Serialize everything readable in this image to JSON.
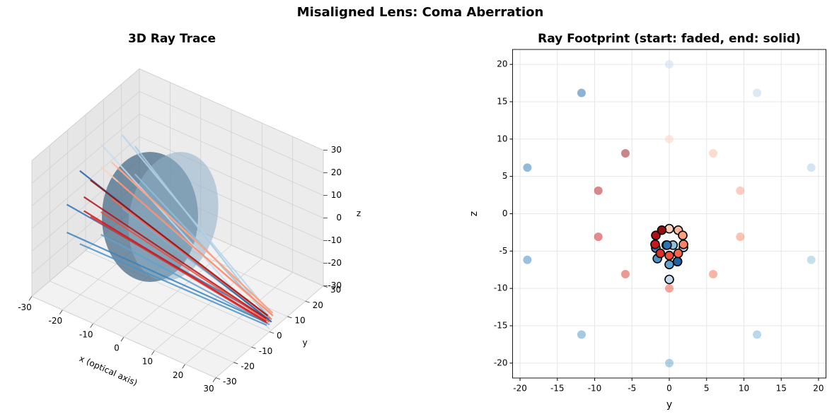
{
  "title": "Misaligned Lens: Coma Aberration",
  "chart_data": [
    {
      "type": "ray3d",
      "title": "3D Ray Trace",
      "xlabel": "x (optical axis)",
      "ylabel": "y",
      "zlabel": "z",
      "xlim": [
        -30,
        30
      ],
      "ylim": [
        -30,
        30
      ],
      "zlim": [
        -30,
        30
      ],
      "xticks": [
        -30,
        -20,
        -10,
        0,
        10,
        20,
        30
      ],
      "yticks": [
        -30,
        -20,
        -10,
        0,
        10,
        20,
        30
      ],
      "zticks": [
        -30,
        -20,
        -10,
        0,
        10,
        20,
        30
      ],
      "rays": [
        {
          "color": "#c6dbef",
          "x": [
            -25,
            30
          ],
          "y": [
            0,
            0
          ],
          "z": [
            20,
            -28.8
          ]
        },
        {
          "color": "#b7d4ea",
          "x": [
            -25,
            30
          ],
          "y": [
            11.76,
            1.9
          ],
          "z": [
            16.18,
            -24.5
          ]
        },
        {
          "color": "#a6cbe3",
          "x": [
            -25,
            30
          ],
          "y": [
            19.02,
            1.1
          ],
          "z": [
            6.18,
            -26.4
          ]
        },
        {
          "color": "#8fbfdc",
          "x": [
            -25,
            30
          ],
          "y": [
            19.02,
            0.5
          ],
          "z": [
            -6.18,
            -24.2
          ]
        },
        {
          "color": "#77b2d8",
          "x": [
            -25,
            30
          ],
          "y": [
            11.76,
            -0.4
          ],
          "z": [
            -16.18,
            -24.2
          ]
        },
        {
          "color": "#5fa2cf",
          "x": [
            -25,
            30
          ],
          "y": [
            0,
            0
          ],
          "z": [
            -20,
            -26.8
          ]
        },
        {
          "color": "#4a93c6",
          "x": [
            -25,
            30
          ],
          "y": [
            -11.76,
            -1.6
          ],
          "z": [
            -16.18,
            -26
          ]
        },
        {
          "color": "#3a84bd",
          "x": [
            -25,
            30
          ],
          "y": [
            -19.02,
            -1.8
          ],
          "z": [
            -6.18,
            -24.6
          ]
        },
        {
          "color": "#2c74b4",
          "x": [
            -25,
            30
          ],
          "y": [
            -19.02,
            -0.3
          ],
          "z": [
            6.18,
            -24.2
          ]
        },
        {
          "color": "#1f63a8",
          "x": [
            -25,
            30
          ],
          "y": [
            -11.76,
            1.1
          ],
          "z": [
            16.18,
            -26.4
          ]
        },
        {
          "color": "#fdd0bc",
          "x": [
            -25,
            30
          ],
          "y": [
            0,
            0
          ],
          "z": [
            10,
            -22
          ]
        },
        {
          "color": "#fcb89e",
          "x": [
            -25,
            30
          ],
          "y": [
            5.88,
            1.2
          ],
          "z": [
            8.09,
            -22.2
          ]
        },
        {
          "color": "#fc9e80",
          "x": [
            -25,
            30
          ],
          "y": [
            9.51,
            1.8
          ],
          "z": [
            3.09,
            -22.9
          ]
        },
        {
          "color": "#fb8464",
          "x": [
            -25,
            30
          ],
          "y": [
            9.51,
            1.9
          ],
          "z": [
            -3.09,
            -24.1
          ]
        },
        {
          "color": "#f6694b",
          "x": [
            -25,
            30
          ],
          "y": [
            5.88,
            1.2
          ],
          "z": [
            -8.09,
            -25.3
          ]
        },
        {
          "color": "#ef4e37",
          "x": [
            -25,
            30
          ],
          "y": [
            0,
            0
          ],
          "z": [
            -10,
            -25.6
          ]
        },
        {
          "color": "#dd3027",
          "x": [
            -25,
            30
          ],
          "y": [
            -5.88,
            -1.2
          ],
          "z": [
            -8.09,
            -25.3
          ]
        },
        {
          "color": "#c8171d",
          "x": [
            -25,
            30
          ],
          "y": [
            -9.51,
            -1.9
          ],
          "z": [
            -3.09,
            -24.1
          ]
        },
        {
          "color": "#b01217",
          "x": [
            -25,
            30
          ],
          "y": [
            -9.51,
            -1.8
          ],
          "z": [
            3.09,
            -22.9
          ]
        },
        {
          "color": "#960c12",
          "x": [
            -25,
            30
          ],
          "y": [
            -5.88,
            -1.0
          ],
          "z": [
            8.09,
            -22.2
          ]
        }
      ]
    },
    {
      "type": "scatter",
      "title": "Ray Footprint (start: faded, end: solid)",
      "xlabel": "y",
      "ylabel": "z",
      "xlim": [
        -21,
        21
      ],
      "ylim": [
        -22,
        22
      ],
      "xticks": [
        -20,
        -15,
        -10,
        -5,
        0,
        5,
        10,
        15,
        20
      ],
      "yticks": [
        -20,
        -15,
        -10,
        -5,
        0,
        5,
        10,
        15,
        20
      ],
      "grid": true,
      "series": [
        {
          "opacity": 0.5,
          "edgecolor": "none",
          "x": [
            0,
            11.76,
            19.02,
            19.02,
            11.76,
            0,
            -11.76,
            -19.02,
            -19.02,
            -11.76
          ],
          "values": [
            20,
            16.18,
            6.18,
            -6.18,
            -16.18,
            -20,
            -16.18,
            -6.18,
            6.18,
            16.18
          ],
          "colors": [
            "#c6dbef",
            "#b7d4ea",
            "#a6cbe3",
            "#8fbfdc",
            "#77b2d8",
            "#5fa2cf",
            "#4a93c6",
            "#3a84bd",
            "#2c74b4",
            "#1f63a8"
          ]
        },
        {
          "opacity": 0.5,
          "edgecolor": "none",
          "x": [
            0,
            5.88,
            9.51,
            9.51,
            5.88,
            0,
            -5.88,
            -9.51,
            -9.51,
            -5.88
          ],
          "values": [
            10,
            8.09,
            3.09,
            -3.09,
            -8.09,
            -10,
            -8.09,
            -3.09,
            3.09,
            8.09
          ],
          "colors": [
            "#fdd0bc",
            "#fcb89e",
            "#fc9e80",
            "#fb8464",
            "#f6694b",
            "#ef4e37",
            "#dd3027",
            "#c8171d",
            "#b01217",
            "#960c12"
          ]
        },
        {
          "opacity": 1,
          "edgecolor": "#000000",
          "x": [
            0,
            1.9,
            1.1,
            0.5,
            -0.4,
            0,
            -1.6,
            -1.8,
            -0.3,
            1.1
          ],
          "values": [
            -8.8,
            -4.5,
            -6.4,
            -4.2,
            -4.2,
            -6.8,
            -6.0,
            -4.6,
            -4.2,
            -6.4
          ],
          "colors": [
            "#c6dbef",
            "#b7d4ea",
            "#a6cbe3",
            "#8fbfdc",
            "#77b2d8",
            "#5fa2cf",
            "#4a93c6",
            "#3a84bd",
            "#2c74b4",
            "#1f63a8"
          ]
        },
        {
          "opacity": 1,
          "edgecolor": "#000000",
          "x": [
            0,
            1.2,
            1.8,
            1.9,
            1.2,
            0,
            -1.2,
            -1.9,
            -1.8,
            -1.0
          ],
          "values": [
            -2.0,
            -2.2,
            -2.9,
            -4.1,
            -5.3,
            -5.6,
            -5.3,
            -4.1,
            -2.9,
            -2.2
          ],
          "colors": [
            "#fdd0bc",
            "#fcb89e",
            "#fc9e80",
            "#fb8464",
            "#f6694b",
            "#ef4e37",
            "#dd3027",
            "#c8171d",
            "#b01217",
            "#960c12"
          ]
        }
      ]
    }
  ]
}
